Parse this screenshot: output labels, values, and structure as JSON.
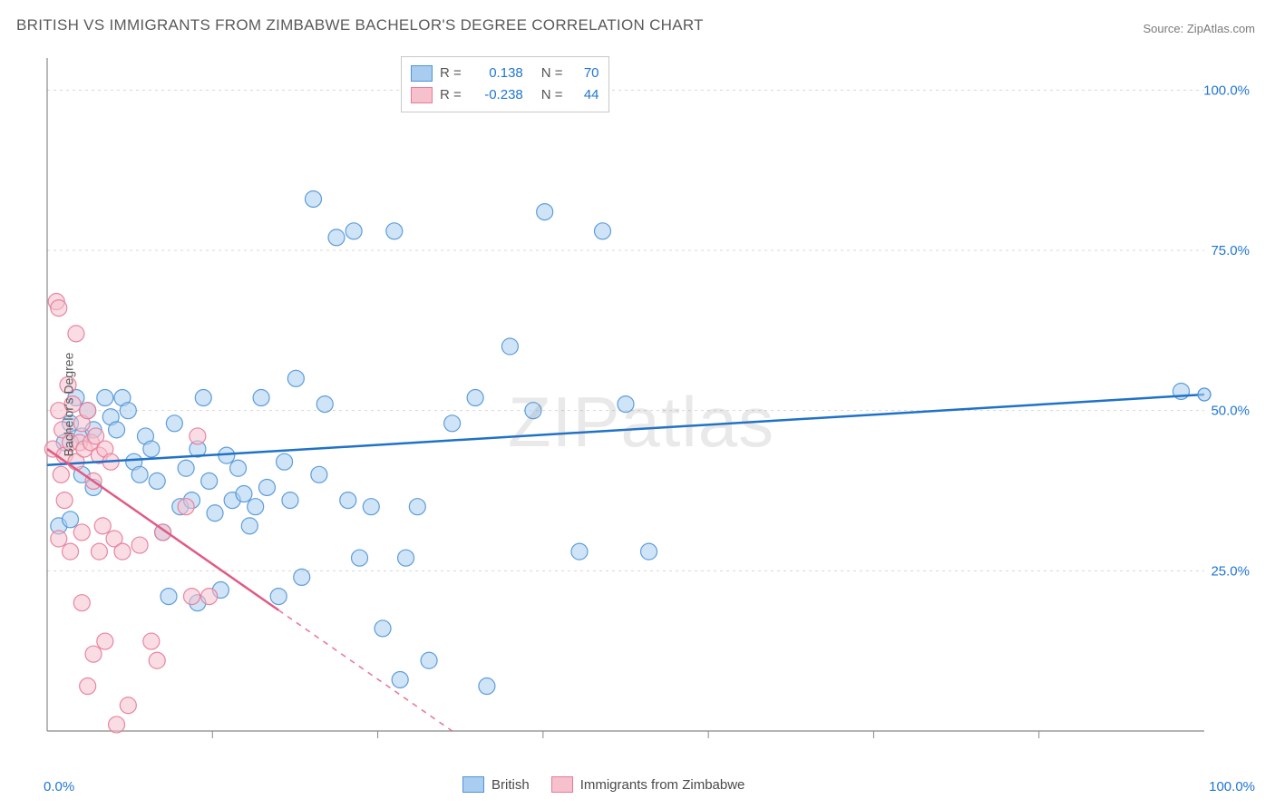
{
  "title": "BRITISH VS IMMIGRANTS FROM ZIMBABWE BACHELOR'S DEGREE CORRELATION CHART",
  "source_label": "Source: ZipAtlas.com",
  "watermark": "ZIPatlas",
  "y_axis_label": "Bachelor's Degree",
  "chart": {
    "type": "scatter",
    "xlim": [
      0,
      100
    ],
    "ylim": [
      0,
      105
    ],
    "y_ticks": [
      25,
      50,
      75,
      100
    ],
    "y_tick_labels": [
      "25.0%",
      "50.0%",
      "75.0%",
      "100.0%"
    ],
    "x_tick_labels": [
      "0.0%",
      "100.0%"
    ],
    "background_color": "#ffffff",
    "grid_color": "#d8d8d8",
    "axis_color": "#888888",
    "tick_label_color": "#2176d2",
    "marker_radius": 9,
    "marker_opacity": 0.55,
    "line_width": 2.5,
    "series": [
      {
        "name": "British",
        "fill_color": "#a9cdf0",
        "stroke_color": "#4f93d6",
        "line_color": "#1f72c7",
        "regression": {
          "x1": 0,
          "y1": 41.5,
          "x2": 100,
          "y2": 52.5,
          "solid": true
        },
        "points": [
          [
            1,
            32
          ],
          [
            1.5,
            45
          ],
          [
            2,
            33
          ],
          [
            2,
            48
          ],
          [
            2.5,
            52
          ],
          [
            3,
            46
          ],
          [
            3,
            40
          ],
          [
            3.5,
            50
          ],
          [
            4,
            38
          ],
          [
            4,
            47
          ],
          [
            5,
            52
          ],
          [
            5.5,
            49
          ],
          [
            6,
            47
          ],
          [
            6.5,
            52
          ],
          [
            7,
            50
          ],
          [
            7.5,
            42
          ],
          [
            8,
            40
          ],
          [
            8.5,
            46
          ],
          [
            9,
            44
          ],
          [
            9.5,
            39
          ],
          [
            10,
            31
          ],
          [
            10.5,
            21
          ],
          [
            11,
            48
          ],
          [
            11.5,
            35
          ],
          [
            12,
            41
          ],
          [
            12.5,
            36
          ],
          [
            13,
            44
          ],
          [
            13,
            20
          ],
          [
            13.5,
            52
          ],
          [
            14,
            39
          ],
          [
            14.5,
            34
          ],
          [
            15,
            22
          ],
          [
            15.5,
            43
          ],
          [
            16,
            36
          ],
          [
            16.5,
            41
          ],
          [
            17,
            37
          ],
          [
            17.5,
            32
          ],
          [
            18,
            35
          ],
          [
            18.5,
            52
          ],
          [
            19,
            38
          ],
          [
            20,
            21
          ],
          [
            20.5,
            42
          ],
          [
            21,
            36
          ],
          [
            21.5,
            55
          ],
          [
            22,
            24
          ],
          [
            23,
            83
          ],
          [
            23.5,
            40
          ],
          [
            24,
            51
          ],
          [
            25,
            77
          ],
          [
            26,
            36
          ],
          [
            26.5,
            78
          ],
          [
            27,
            27
          ],
          [
            28,
            35
          ],
          [
            29,
            16
          ],
          [
            30,
            78
          ],
          [
            30.5,
            8
          ],
          [
            31,
            27
          ],
          [
            32,
            35
          ],
          [
            33,
            11
          ],
          [
            35,
            48
          ],
          [
            37,
            52
          ],
          [
            38,
            7
          ],
          [
            40,
            60
          ],
          [
            42,
            50
          ],
          [
            43,
            81
          ],
          [
            46,
            28
          ],
          [
            48,
            78
          ],
          [
            50,
            51
          ],
          [
            52,
            28
          ],
          [
            98,
            53
          ]
        ]
      },
      {
        "name": "Immigrants from Zimbabwe",
        "fill_color": "#f6c1cd",
        "stroke_color": "#e67a97",
        "line_color": "#e05a82",
        "regression": {
          "x1": 0,
          "y1": 44,
          "x2": 35,
          "y2": 0,
          "solid_until_x": 20
        },
        "points": [
          [
            0.5,
            44
          ],
          [
            0.8,
            67
          ],
          [
            1,
            66
          ],
          [
            1,
            50
          ],
          [
            1,
            30
          ],
          [
            1.2,
            40
          ],
          [
            1.3,
            47
          ],
          [
            1.5,
            43
          ],
          [
            1.5,
            36
          ],
          [
            1.8,
            54
          ],
          [
            2,
            45
          ],
          [
            2,
            28
          ],
          [
            2.2,
            51
          ],
          [
            2.5,
            42
          ],
          [
            2.5,
            62
          ],
          [
            2.8,
            45
          ],
          [
            3,
            48
          ],
          [
            3,
            31
          ],
          [
            3,
            20
          ],
          [
            3.2,
            44
          ],
          [
            3.5,
            50
          ],
          [
            3.5,
            7
          ],
          [
            3.8,
            45
          ],
          [
            4,
            39
          ],
          [
            4,
            12
          ],
          [
            4.2,
            46
          ],
          [
            4.5,
            28
          ],
          [
            4.5,
            43
          ],
          [
            4.8,
            32
          ],
          [
            5,
            44
          ],
          [
            5,
            14
          ],
          [
            5.5,
            42
          ],
          [
            5.8,
            30
          ],
          [
            6,
            1
          ],
          [
            6.5,
            28
          ],
          [
            7,
            4
          ],
          [
            8,
            29
          ],
          [
            9,
            14
          ],
          [
            10,
            31
          ],
          [
            12,
            35
          ],
          [
            13,
            46
          ],
          [
            14,
            21
          ],
          [
            12.5,
            21
          ],
          [
            9.5,
            11
          ]
        ]
      }
    ]
  },
  "stats": [
    {
      "series": 0,
      "r_label": "R =",
      "r_value": "0.138",
      "n_label": "N =",
      "n_value": "70"
    },
    {
      "series": 1,
      "r_label": "R =",
      "r_value": "-0.238",
      "n_label": "N =",
      "n_value": "44"
    }
  ],
  "legend": [
    {
      "series": 0,
      "label": "British"
    },
    {
      "series": 1,
      "label": "Immigrants from Zimbabwe"
    }
  ]
}
